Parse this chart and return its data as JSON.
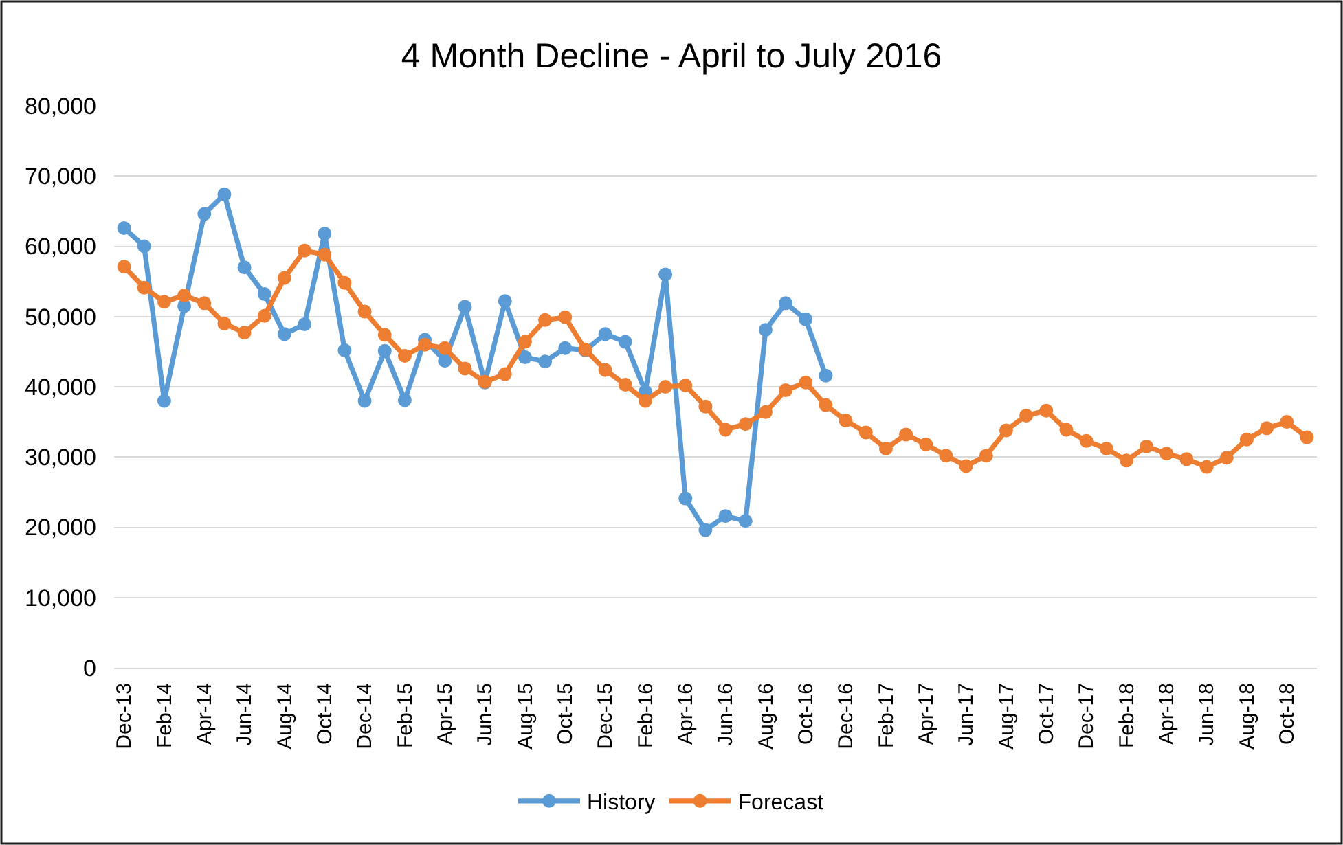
{
  "chart_data": {
    "type": "line",
    "title": "4 Month Decline - April to July 2016",
    "categories": [
      "Dec-13",
      null,
      "Feb-14",
      null,
      "Apr-14",
      null,
      "Jun-14",
      null,
      "Aug-14",
      null,
      "Oct-14",
      null,
      "Dec-14",
      null,
      "Feb-15",
      null,
      "Apr-15",
      null,
      "Jun-15",
      null,
      "Aug-15",
      null,
      "Oct-15",
      null,
      "Dec-15",
      null,
      "Feb-16",
      null,
      "Apr-16",
      null,
      "Jun-16",
      null,
      "Aug-16",
      null,
      "Oct-16",
      null,
      "Dec-16",
      null,
      "Feb-17",
      null,
      "Apr-17",
      null,
      "Jun-17",
      null,
      "Aug-17",
      null,
      "Oct-17",
      null,
      "Dec-17",
      null,
      "Feb-18",
      null,
      "Apr-18",
      null,
      "Jun-18",
      null,
      "Aug-18",
      null,
      "Oct-18",
      null
    ],
    "series": [
      {
        "name": "History",
        "color": "#5b9bd5",
        "values": [
          62600,
          60000,
          38000,
          51500,
          64600,
          67400,
          57000,
          53200,
          47500,
          48900,
          61800,
          45200,
          38000,
          45100,
          38100,
          46700,
          43700,
          51400,
          40600,
          52200,
          44200,
          43600,
          45500,
          45200,
          47500,
          46400,
          39300,
          56000,
          24100,
          19600,
          21600,
          20900,
          48100,
          51900,
          49600,
          41600,
          null,
          null,
          null,
          null,
          null,
          null,
          null,
          null,
          null,
          null,
          null,
          null,
          null,
          null,
          null,
          null,
          null,
          null,
          null,
          null,
          null,
          null,
          null,
          null
        ]
      },
      {
        "name": "Forecast",
        "color": "#ed7d31",
        "values": [
          57100,
          54100,
          52100,
          53000,
          51900,
          49000,
          47700,
          50100,
          55500,
          59400,
          58800,
          54800,
          50700,
          47400,
          44400,
          46000,
          45500,
          42600,
          40700,
          41800,
          46400,
          49500,
          49900,
          45300,
          42400,
          40300,
          38000,
          40000,
          40200,
          37200,
          33900,
          34700,
          36400,
          39500,
          40600,
          37400,
          35200,
          33500,
          31200,
          33200,
          31800,
          30200,
          28700,
          30200,
          33800,
          35900,
          36600,
          33900,
          32300,
          31200,
          29500,
          31500,
          30500,
          29700,
          28600,
          29900,
          32500,
          34100,
          35000,
          32800
        ]
      }
    ],
    "ylim": [
      0,
      80000
    ],
    "yticks": [
      {
        "value": 0,
        "label": "0"
      },
      {
        "value": 10000,
        "label": "10,000"
      },
      {
        "value": 20000,
        "label": "20,000"
      },
      {
        "value": 30000,
        "label": "30,000"
      },
      {
        "value": 40000,
        "label": "40,000"
      },
      {
        "value": 50000,
        "label": "50,000"
      },
      {
        "value": 60000,
        "label": "60,000"
      },
      {
        "value": 70000,
        "label": "70,000"
      },
      {
        "value": 80000,
        "label": "80,000"
      }
    ],
    "grid": "y",
    "legend": "bottom",
    "marker": "circle",
    "line_style": "solid"
  }
}
